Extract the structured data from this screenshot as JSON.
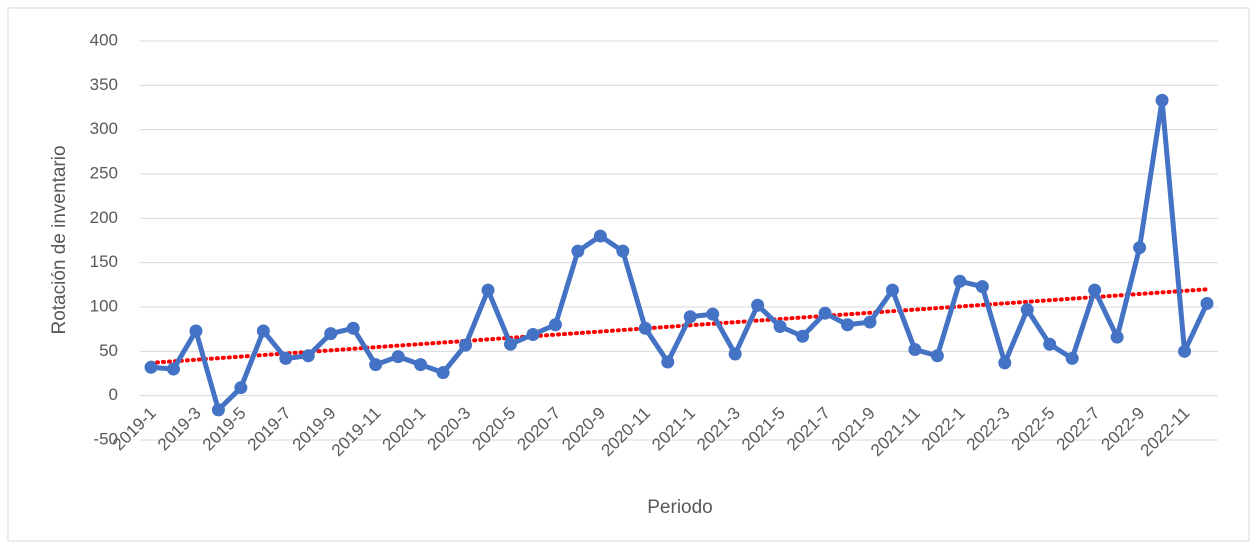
{
  "chart_data": {
    "type": "line",
    "x_label": "Periodo",
    "y_label": "Rotación de inventario",
    "categories": [
      "2019-1",
      null,
      "2019-3",
      null,
      "2019-5",
      null,
      "2019-7",
      null,
      "2019-9",
      null,
      "2019-11",
      null,
      "2020-1",
      null,
      "2020-3",
      null,
      "2020-5",
      null,
      "2020-7",
      null,
      "2020-9",
      null,
      "2020-11",
      null,
      "2021-1",
      null,
      "2021-3",
      null,
      "2021-5",
      null,
      "2021-7",
      null,
      "2021-9",
      null,
      "2021-11",
      null,
      "2022-1",
      null,
      "2022-3",
      null,
      "2022-5",
      null,
      "2022-7",
      null,
      "2022-9",
      null,
      "2022-11",
      null
    ],
    "series": [
      {
        "color": "#4472c4",
        "values": [
          32,
          30,
          73,
          -16,
          9,
          73,
          42,
          45,
          70,
          76,
          35,
          44,
          35,
          26,
          57,
          119,
          58,
          69,
          80,
          163,
          180,
          163,
          76,
          38,
          89,
          92,
          47,
          102,
          78,
          67,
          93,
          80,
          83,
          119,
          52,
          45,
          129,
          123,
          37,
          97,
          58,
          42,
          119,
          66,
          167,
          333,
          50,
          104
        ]
      }
    ],
    "trendline": {
      "color": "#ff0000",
      "values": [
        37,
        120
      ]
    },
    "ylim": [
      -50,
      400
    ],
    "yticks": [
      -50,
      0,
      50,
      100,
      150,
      200,
      250,
      300,
      350,
      400
    ],
    "grid": true
  }
}
